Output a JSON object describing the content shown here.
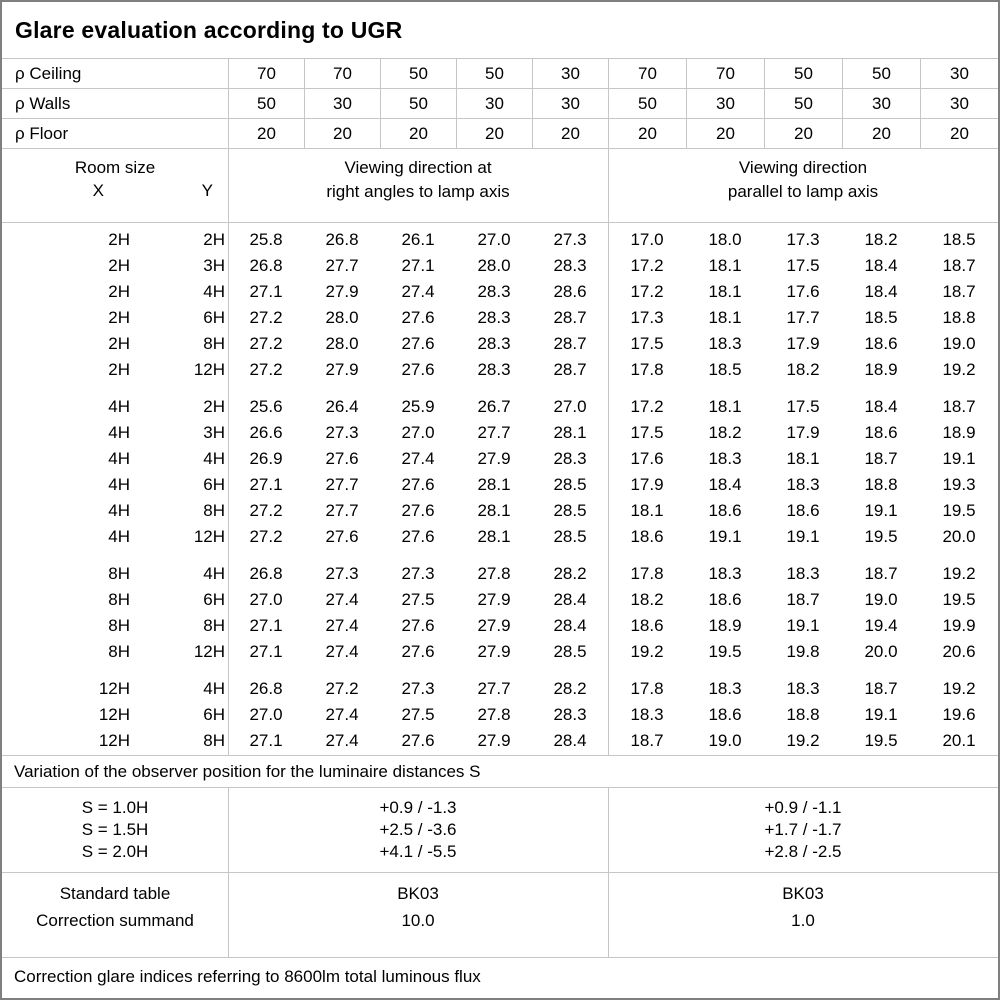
{
  "title": "Glare evaluation according to UGR",
  "reflectance_rows": [
    {
      "label": "ρ Ceiling",
      "values": [
        "70",
        "70",
        "50",
        "50",
        "30",
        "70",
        "70",
        "50",
        "50",
        "30"
      ]
    },
    {
      "label": "ρ Walls",
      "values": [
        "50",
        "30",
        "50",
        "30",
        "30",
        "50",
        "30",
        "50",
        "30",
        "30"
      ]
    },
    {
      "label": "ρ Floor",
      "values": [
        "20",
        "20",
        "20",
        "20",
        "20",
        "20",
        "20",
        "20",
        "20",
        "20"
      ]
    }
  ],
  "header": {
    "room_size_label": "Room size",
    "x_label": "X",
    "y_label": "Y",
    "right_angles_line1": "Viewing direction at",
    "right_angles_line2": "right angles to lamp axis",
    "parallel_line1": "Viewing direction",
    "parallel_line2": "parallel to lamp axis"
  },
  "ugr_table": {
    "blocks": [
      {
        "rows": [
          {
            "x": "2H",
            "y": "2H",
            "right_angles": [
              "25.8",
              "26.8",
              "26.1",
              "27.0",
              "27.3"
            ],
            "parallel": [
              "17.0",
              "18.0",
              "17.3",
              "18.2",
              "18.5"
            ]
          },
          {
            "x": "2H",
            "y": "3H",
            "right_angles": [
              "26.8",
              "27.7",
              "27.1",
              "28.0",
              "28.3"
            ],
            "parallel": [
              "17.2",
              "18.1",
              "17.5",
              "18.4",
              "18.7"
            ]
          },
          {
            "x": "2H",
            "y": "4H",
            "right_angles": [
              "27.1",
              "27.9",
              "27.4",
              "28.3",
              "28.6"
            ],
            "parallel": [
              "17.2",
              "18.1",
              "17.6",
              "18.4",
              "18.7"
            ]
          },
          {
            "x": "2H",
            "y": "6H",
            "right_angles": [
              "27.2",
              "28.0",
              "27.6",
              "28.3",
              "28.7"
            ],
            "parallel": [
              "17.3",
              "18.1",
              "17.7",
              "18.5",
              "18.8"
            ]
          },
          {
            "x": "2H",
            "y": "8H",
            "right_angles": [
              "27.2",
              "28.0",
              "27.6",
              "28.3",
              "28.7"
            ],
            "parallel": [
              "17.5",
              "18.3",
              "17.9",
              "18.6",
              "19.0"
            ]
          },
          {
            "x": "2H",
            "y": "12H",
            "right_angles": [
              "27.2",
              "27.9",
              "27.6",
              "28.3",
              "28.7"
            ],
            "parallel": [
              "17.8",
              "18.5",
              "18.2",
              "18.9",
              "19.2"
            ]
          }
        ]
      },
      {
        "rows": [
          {
            "x": "4H",
            "y": "2H",
            "right_angles": [
              "25.6",
              "26.4",
              "25.9",
              "26.7",
              "27.0"
            ],
            "parallel": [
              "17.2",
              "18.1",
              "17.5",
              "18.4",
              "18.7"
            ]
          },
          {
            "x": "4H",
            "y": "3H",
            "right_angles": [
              "26.6",
              "27.3",
              "27.0",
              "27.7",
              "28.1"
            ],
            "parallel": [
              "17.5",
              "18.2",
              "17.9",
              "18.6",
              "18.9"
            ]
          },
          {
            "x": "4H",
            "y": "4H",
            "right_angles": [
              "26.9",
              "27.6",
              "27.4",
              "27.9",
              "28.3"
            ],
            "parallel": [
              "17.6",
              "18.3",
              "18.1",
              "18.7",
              "19.1"
            ]
          },
          {
            "x": "4H",
            "y": "6H",
            "right_angles": [
              "27.1",
              "27.7",
              "27.6",
              "28.1",
              "28.5"
            ],
            "parallel": [
              "17.9",
              "18.4",
              "18.3",
              "18.8",
              "19.3"
            ]
          },
          {
            "x": "4H",
            "y": "8H",
            "right_angles": [
              "27.2",
              "27.7",
              "27.6",
              "28.1",
              "28.5"
            ],
            "parallel": [
              "18.1",
              "18.6",
              "18.6",
              "19.1",
              "19.5"
            ]
          },
          {
            "x": "4H",
            "y": "12H",
            "right_angles": [
              "27.2",
              "27.6",
              "27.6",
              "28.1",
              "28.5"
            ],
            "parallel": [
              "18.6",
              "19.1",
              "19.1",
              "19.5",
              "20.0"
            ]
          }
        ]
      },
      {
        "rows": [
          {
            "x": "8H",
            "y": "4H",
            "right_angles": [
              "26.8",
              "27.3",
              "27.3",
              "27.8",
              "28.2"
            ],
            "parallel": [
              "17.8",
              "18.3",
              "18.3",
              "18.7",
              "19.2"
            ]
          },
          {
            "x": "8H",
            "y": "6H",
            "right_angles": [
              "27.0",
              "27.4",
              "27.5",
              "27.9",
              "28.4"
            ],
            "parallel": [
              "18.2",
              "18.6",
              "18.7",
              "19.0",
              "19.5"
            ]
          },
          {
            "x": "8H",
            "y": "8H",
            "right_angles": [
              "27.1",
              "27.4",
              "27.6",
              "27.9",
              "28.4"
            ],
            "parallel": [
              "18.6",
              "18.9",
              "19.1",
              "19.4",
              "19.9"
            ]
          },
          {
            "x": "8H",
            "y": "12H",
            "right_angles": [
              "27.1",
              "27.4",
              "27.6",
              "27.9",
              "28.5"
            ],
            "parallel": [
              "19.2",
              "19.5",
              "19.8",
              "20.0",
              "20.6"
            ]
          }
        ]
      },
      {
        "rows": [
          {
            "x": "12H",
            "y": "4H",
            "right_angles": [
              "26.8",
              "27.2",
              "27.3",
              "27.7",
              "28.2"
            ],
            "parallel": [
              "17.8",
              "18.3",
              "18.3",
              "18.7",
              "19.2"
            ]
          },
          {
            "x": "12H",
            "y": "6H",
            "right_angles": [
              "27.0",
              "27.4",
              "27.5",
              "27.8",
              "28.3"
            ],
            "parallel": [
              "18.3",
              "18.6",
              "18.8",
              "19.1",
              "19.6"
            ]
          },
          {
            "x": "12H",
            "y": "8H",
            "right_angles": [
              "27.1",
              "27.4",
              "27.6",
              "27.9",
              "28.4"
            ],
            "parallel": [
              "18.7",
              "19.0",
              "19.2",
              "19.5",
              "20.1"
            ]
          }
        ]
      }
    ]
  },
  "variation": {
    "note": "Variation of the observer position for the luminaire distances S",
    "rows": [
      {
        "label": "S = 1.0H",
        "right_angles": "+0.9 / -1.3",
        "parallel": "+0.9 / -1.1"
      },
      {
        "label": "S = 1.5H",
        "right_angles": "+2.5 / -3.6",
        "parallel": "+1.7 / -1.7"
      },
      {
        "label": "S = 2.0H",
        "right_angles": "+4.1 / -5.5",
        "parallel": "+2.8 / -2.5"
      }
    ]
  },
  "standard": {
    "rows": [
      {
        "label": "Standard table",
        "right_angles": "BK03",
        "parallel": "BK03"
      },
      {
        "label": "Correction summand",
        "right_angles": "10.0",
        "parallel": "1.0"
      }
    ]
  },
  "footer_note": "Correction glare indices referring to 8600lm total luminous flux",
  "colors": {
    "grid_line": "#c6c6c6",
    "outer_border": "#7f7f7f",
    "text": "#000000",
    "background": "#ffffff"
  }
}
